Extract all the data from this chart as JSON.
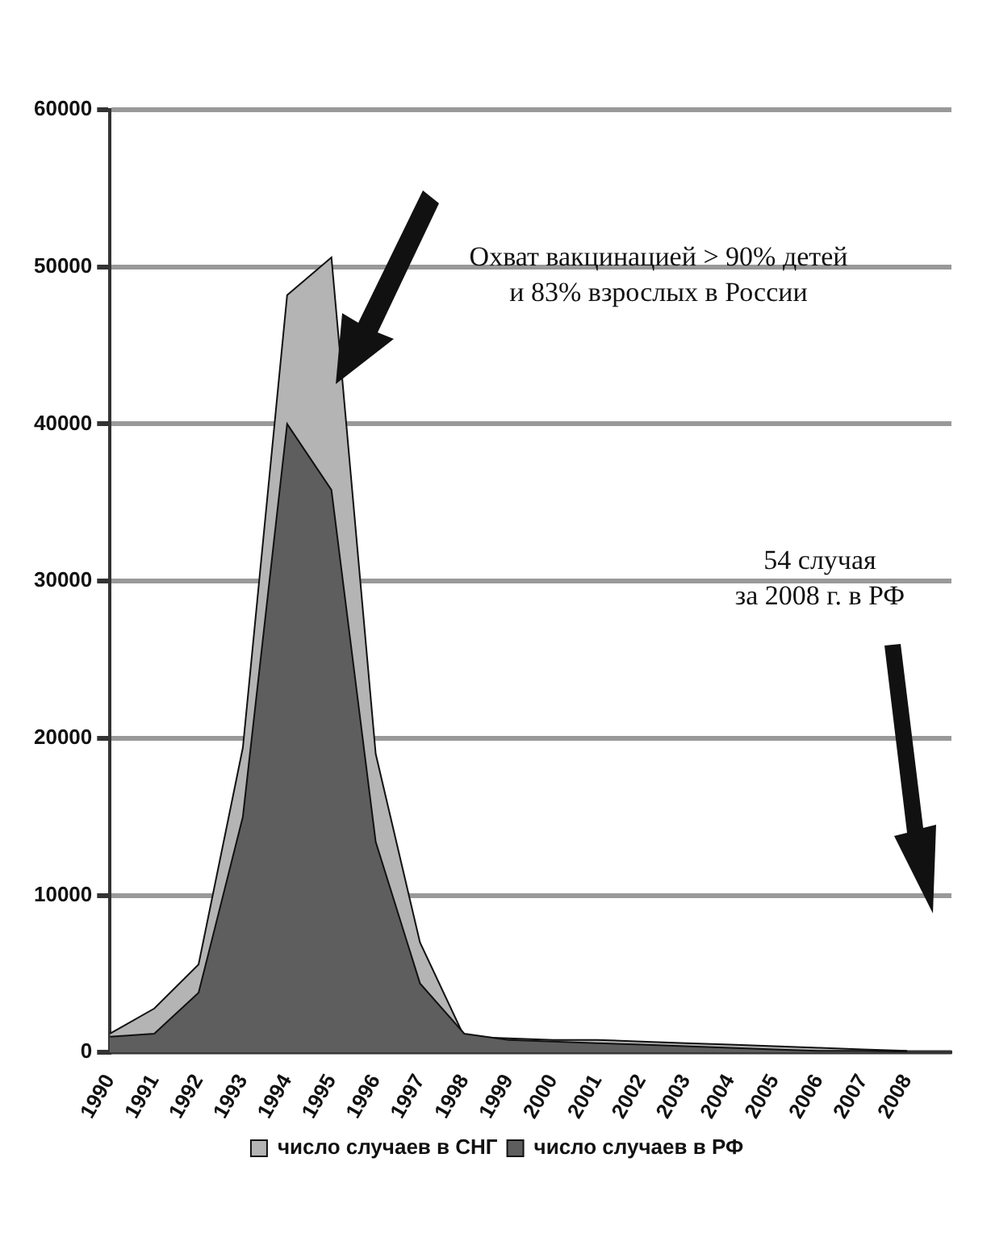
{
  "chart_data": {
    "type": "area",
    "categories": [
      "1990",
      "1991",
      "1992",
      "1993",
      "1994",
      "1995",
      "1996",
      "1997",
      "1998",
      "1999",
      "2000",
      "2001",
      "2002",
      "2003",
      "2004",
      "2005",
      "2006",
      "2007",
      "2008",
      null
    ],
    "series": [
      {
        "name": "число случаев в СНГ",
        "color": "#b4b4b4",
        "values": [
          1200,
          2800,
          5600,
          19400,
          48200,
          50600,
          19000,
          7000,
          1000,
          900,
          800,
          800,
          700,
          600,
          500,
          400,
          300,
          200,
          100,
          null
        ]
      },
      {
        "name": "число случаев в РФ",
        "color": "#5e5e5e",
        "values": [
          1000,
          1200,
          3800,
          15000,
          40000,
          35800,
          13400,
          4400,
          1200,
          800,
          700,
          600,
          500,
          400,
          300,
          200,
          100,
          100,
          54,
          null
        ]
      }
    ],
    "ylim": [
      0,
      60000
    ],
    "yticks": [
      0,
      10000,
      20000,
      30000,
      40000,
      50000,
      60000
    ],
    "grid": "y",
    "legend": "bottom",
    "annotations": [
      "Охват вакцинацией > 90% детей\nи 83% взрослых в России",
      "54 случая\nза 2008 г. в РФ"
    ]
  }
}
